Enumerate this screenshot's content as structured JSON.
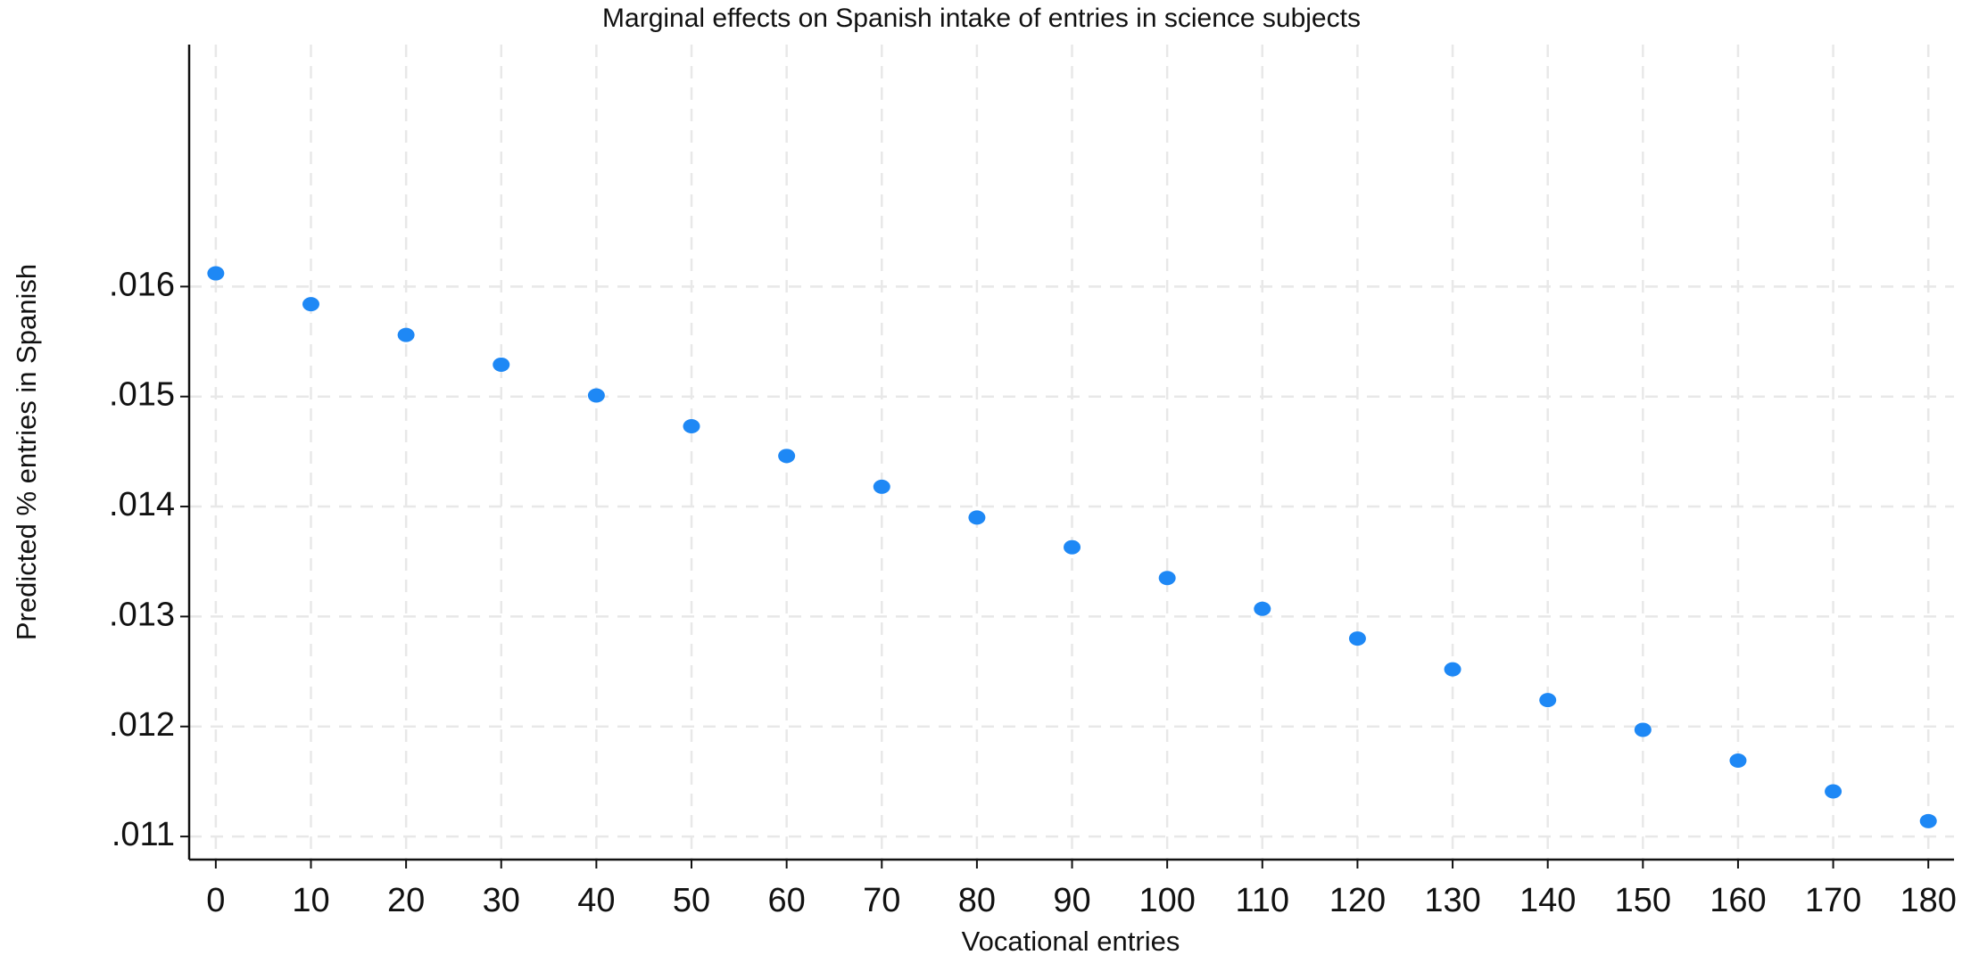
{
  "chart_data": {
    "type": "scatter",
    "title": "Marginal effects on Spanish intake  of entries in science subjects",
    "x_label": "Vocational entries",
    "y_label": "Predicted % entries in Spanish",
    "x": [
      0,
      10,
      20,
      30,
      40,
      50,
      60,
      70,
      80,
      90,
      100,
      110,
      120,
      130,
      140,
      150,
      160,
      170,
      180
    ],
    "series": [
      {
        "name": "Predicted",
        "color": "#1e88f5",
        "values": [
          0.01612,
          0.01584,
          0.01556,
          0.01529,
          0.01501,
          0.01473,
          0.01446,
          0.01418,
          0.0139,
          0.01363,
          0.01335,
          0.01307,
          0.0128,
          0.01252,
          0.01224,
          0.01197,
          0.01169,
          0.01141,
          0.01114
        ]
      }
    ],
    "xlim": [
      -2.8,
      182.7
    ],
    "ylim": [
      0.01079,
      0.0182
    ],
    "xticks": [
      0,
      10,
      20,
      30,
      40,
      50,
      60,
      70,
      80,
      90,
      100,
      110,
      120,
      130,
      140,
      150,
      160,
      170,
      180
    ],
    "yticks": [
      {
        "value": 0.011,
        "label": ".011"
      },
      {
        "value": 0.012,
        "label": ".012"
      },
      {
        "value": 0.013,
        "label": ".013"
      },
      {
        "value": 0.014,
        "label": ".014"
      },
      {
        "value": 0.015,
        "label": ".015"
      },
      {
        "value": 0.016,
        "label": ".016"
      }
    ],
    "grid": true
  }
}
